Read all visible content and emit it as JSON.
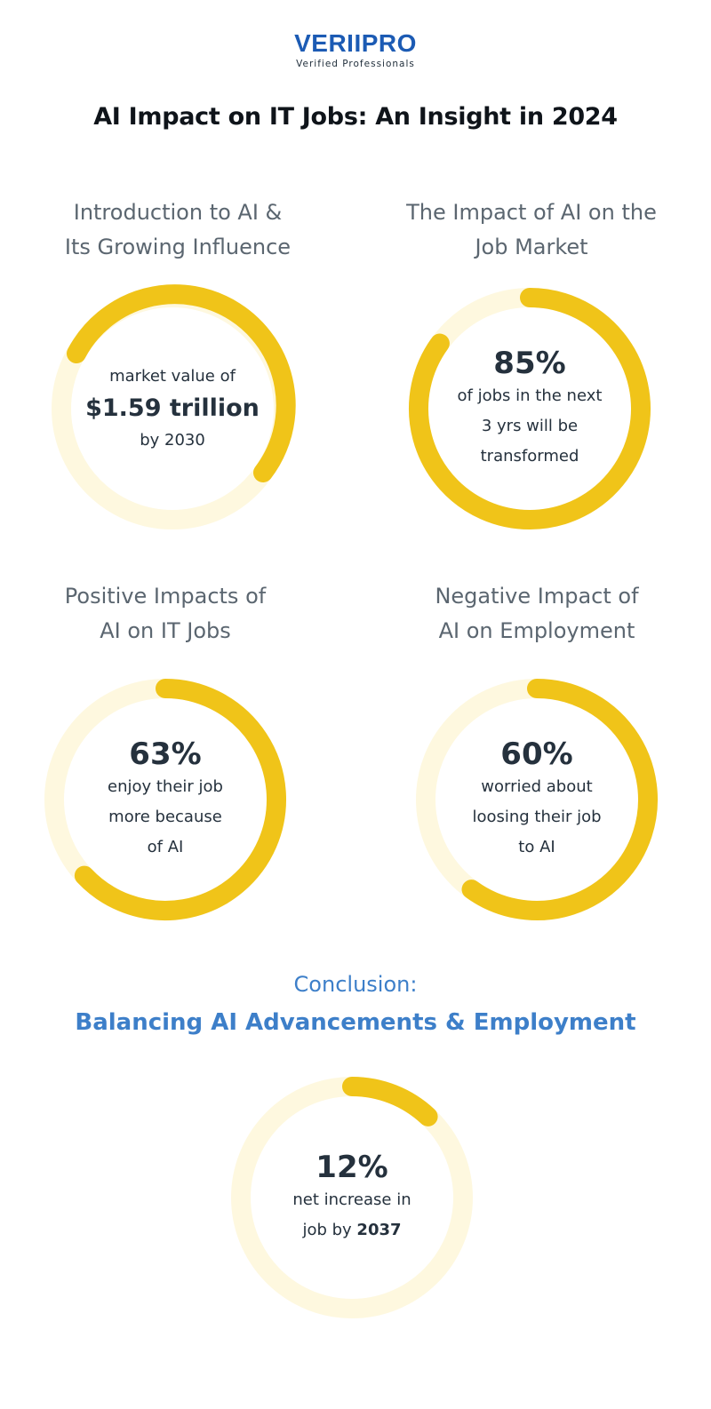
{
  "brand": {
    "name": "VERIIPRO",
    "tagline": "Verified Professionals"
  },
  "title": "AI Impact on IT Jobs: An Insight in 2024",
  "colors": {
    "ring_fill": "#f0c419",
    "ring_track": "#fef8df",
    "brand_blue": "#1c5bb4",
    "conclusion_blue": "#3d7fc9"
  },
  "sections": [
    {
      "title_lines": [
        "Introduction to AI &",
        "Its Growing Influence"
      ],
      "text_top": "market value of",
      "value": "$1.59 trillion",
      "text_lines": [
        "by 2030"
      ]
    },
    {
      "title_lines": [
        "The Impact of AI on the",
        "Job Market"
      ],
      "value": "85%",
      "text_lines": [
        "of jobs in the next",
        "3 yrs will be",
        "transformed"
      ],
      "ring_fraction": 0.85
    },
    {
      "title_lines": [
        "Positive Impacts of",
        "AI on IT Jobs"
      ],
      "value": "63%",
      "text_lines": [
        "enjoy their job",
        "more because",
        "of AI"
      ],
      "ring_fraction": 0.63
    },
    {
      "title_lines": [
        "Negative Impact of",
        "AI on Employment"
      ],
      "value": "60%",
      "text_lines": [
        "worried about",
        "loosing their job",
        "to AI"
      ],
      "ring_fraction": 0.6
    }
  ],
  "conclusion": {
    "label": "Conclusion:",
    "title": "Balancing AI Advancements & Employment",
    "value": "12%",
    "text_line1": "net increase in",
    "text_line2_prefix": "job by ",
    "text_line2_bold": "2037",
    "ring_fraction": 0.12
  }
}
